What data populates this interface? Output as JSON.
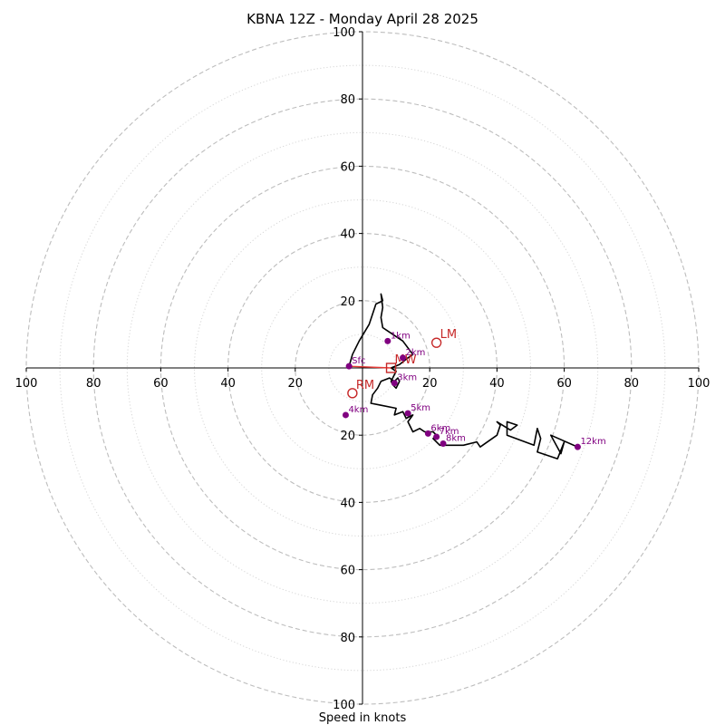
{
  "chart_data": {
    "type": "scatter",
    "title": "KBNA 12Z - Monday April 28 2025",
    "xlabel": "Speed in knots",
    "ylabel": "",
    "xlim": [
      -100,
      100
    ],
    "ylim": [
      -100,
      100
    ],
    "ring_major_every": 20,
    "ring_minor_every": 10,
    "tick_labels_x": [
      "100",
      "80",
      "60",
      "40",
      "20",
      "",
      "20",
      "40",
      "60",
      "80",
      "100"
    ],
    "tick_labels_y": [
      "100",
      "80",
      "60",
      "40",
      "20",
      "",
      "20",
      "40",
      "60",
      "80",
      "100"
    ],
    "hodograph_trace": {
      "u": [
        -4,
        -3,
        -1,
        2,
        4,
        6,
        5.5,
        6,
        5.5,
        6,
        7.5,
        12,
        15,
        13.5,
        11,
        8.5,
        10,
        9.5,
        8.5,
        9,
        10,
        11,
        10.5,
        9.5,
        8,
        5.5,
        4.5,
        3,
        2.5,
        5,
        10,
        9.5,
        12,
        13,
        15,
        13.5,
        15,
        17,
        18.5,
        21,
        22,
        21,
        23,
        26,
        30,
        34,
        35,
        40,
        41,
        40,
        44,
        46,
        43,
        43,
        51,
        52,
        53,
        52,
        58,
        60,
        59,
        56,
        64
      ],
      "v": [
        0.5,
        4,
        8,
        13,
        19,
        20,
        22,
        18,
        15,
        12,
        11,
        8,
        4,
        3,
        1,
        0,
        -1,
        -2,
        -4,
        -5,
        -6,
        -4,
        -3,
        -4,
        -3,
        -4,
        -6,
        -8,
        -10.5,
        -11,
        -12,
        -14,
        -13,
        -15,
        -14,
        -16,
        -19,
        -18,
        -19,
        -19,
        -20,
        -21,
        -23,
        -23,
        -23,
        -22,
        -23.5,
        -20,
        -17,
        -16,
        -18.5,
        -17,
        -16,
        -20,
        -23,
        -18,
        -21,
        -25,
        -27,
        -22,
        -25.5,
        -20,
        -23.5
      ]
    },
    "height_points": [
      {
        "label": "Sfc",
        "u": -4,
        "v": 0.5
      },
      {
        "label": "1km",
        "u": 7.5,
        "v": 8
      },
      {
        "label": "2km",
        "u": 12,
        "v": 3
      },
      {
        "label": "3km",
        "u": 9.5,
        "v": -4.5
      },
      {
        "label": "4km",
        "u": -5,
        "v": -14
      },
      {
        "label": "5km",
        "u": 13.5,
        "v": -13.5
      },
      {
        "label": "6km",
        "u": 19.5,
        "v": -19.5
      },
      {
        "label": "7km",
        "u": 22,
        "v": -20.5
      },
      {
        "label": "8km",
        "u": 24,
        "v": -22.5
      },
      {
        "label": "12km",
        "u": 64,
        "v": -23.5
      }
    ],
    "storm_motions": [
      {
        "label": "LM",
        "u": 22,
        "v": 7.5,
        "marker": "circle"
      },
      {
        "label": "RM",
        "u": -3,
        "v": -7.5,
        "marker": "circle"
      },
      {
        "label": "MW",
        "u": 8.5,
        "v": 0,
        "marker": "square"
      }
    ],
    "colors": {
      "trace": "#000000",
      "height_marker": "#800080",
      "storm_motion": "#c62828",
      "mean_wind_line": "#e53935",
      "ring_major": "#bdbdbd",
      "ring_minor": "#d6d6d6"
    }
  }
}
